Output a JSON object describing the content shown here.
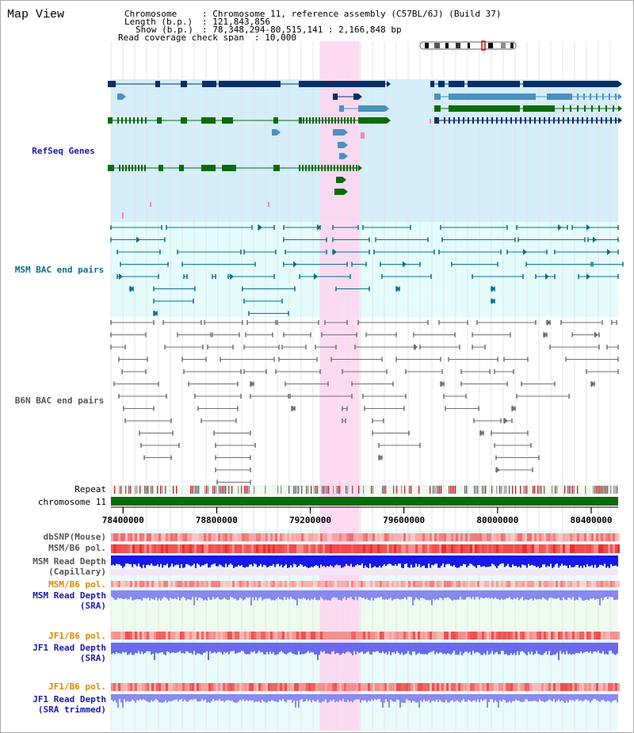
{
  "view_title": "Map View",
  "header": {
    "chromosome_label": "Chromosome",
    "chromosome_value": ": Chromosome 11, reference assembly (C57BL/6J) (Build 37)",
    "length_label": "Length (b.p.)",
    "length_value": ": 121,843,856",
    "show_label": "Show (b.p.)",
    "show_value": ": 78,348,294-80,515,141 : 2,166,848 bp",
    "coverage_label": "Read coverage check span",
    "coverage_value": ": 10,000"
  },
  "tracks": {
    "refseq": "RefSeq Genes",
    "msm_bac": "MSM BAC end pairs",
    "b6n_bac": "B6N BAC end pairs",
    "repeat": "Repeat",
    "chromosome": "chromosome 11",
    "dbsnp": "dbSNP(Mouse)",
    "msm_b6_pol": "MSM/B6 pol.",
    "msm_depth_cap_1": "MSM Read Depth",
    "msm_depth_cap_2": "(Capillary)",
    "msm_b6_pol_2": "MSM/B6 pol.",
    "msm_depth_sra_1": "MSM Read Depth",
    "msm_depth_sra_2": "(SRA)",
    "jf1_pol": "JF1/B6 pol.",
    "jf1_depth_1": "JF1 Read Depth",
    "jf1_depth_2": "(SRA)",
    "jf1_pol_2": "JF1/B6 pol.",
    "jf1_trim_1": "JF1 Read Depth",
    "jf1_trim_2": "(SRA trimmed)"
  },
  "axis": {
    "range_bp": [
      78348294,
      80515141
    ],
    "ticks": [
      {
        "bp": 78400000,
        "label": "78400000"
      },
      {
        "bp": 78800000,
        "label": "78800000"
      },
      {
        "bp": 79200000,
        "label": "79200000"
      },
      {
        "bp": 79600000,
        "label": "79600000"
      },
      {
        "bp": 80000000,
        "label": "80000000"
      },
      {
        "bp": 80400000,
        "label": "80400000"
      }
    ]
  },
  "highlight_bp": [
    79240000,
    79410000
  ],
  "colors": {
    "refseq_bg": "#d4eefa",
    "msm_bg": "#e4fcfc",
    "highlight": "#ffd3f0",
    "navy": "#0a2f66",
    "steel": "#4a91bd",
    "green": "#0b6b0b",
    "teal": "#0a6f8f",
    "gray": "#707070",
    "label_blue": "#1a1ab0",
    "label_teal": "#0a6f8f",
    "label_gray": "#555555",
    "label_orange": "#e08a00",
    "label_black": "#000000"
  }
}
